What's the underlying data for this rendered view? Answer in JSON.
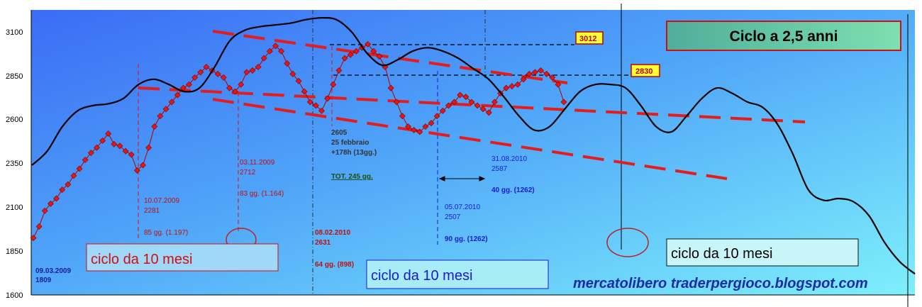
{
  "chart_data": {
    "type": "line",
    "title": "Ciclo a 2,5 anni",
    "yticks": [
      "3100",
      "2850",
      "2600",
      "2350",
      "2100",
      "1850",
      "1600"
    ],
    "ylim": [
      1600,
      3190
    ],
    "grid": false,
    "level_labels": [
      "3012",
      "2830"
    ],
    "cycle_boxes": [
      "ciclo da 10 mesi",
      "ciclo da 10 mesi",
      "ciclo da 10 mesi"
    ],
    "watermark": "mercatolibero traderpergioco.blogspot.com",
    "annotations": [
      {
        "lines": [
          "09.03.2009",
          "1809"
        ]
      },
      {
        "lines": [
          "10.07.2009",
          "2281"
        ]
      },
      {
        "lines": [
          "85 gg. (1.197)"
        ]
      },
      {
        "lines": [
          "03.11.2009",
          "2712"
        ]
      },
      {
        "lines": [
          "83 gg. (1.164)"
        ]
      },
      {
        "lines": [
          "2605",
          "25 febbraio",
          "+178h (13gg.)"
        ]
      },
      {
        "lines": [
          "TOT. 245 gg."
        ]
      },
      {
        "lines": [
          "08.02.2010",
          "2631"
        ]
      },
      {
        "lines": [
          "64 gg. (898)"
        ]
      },
      {
        "lines": [
          "31.08.2010",
          "2587"
        ]
      },
      {
        "lines": [
          "40 gg. (1262)"
        ]
      },
      {
        "lines": [
          "05.07.2010",
          "2507"
        ]
      },
      {
        "lines": [
          "90 gg. (1262)"
        ]
      }
    ],
    "series": [
      {
        "type": "price",
        "values": [
          1925,
          1990,
          2080,
          2120,
          2150,
          2200,
          2230,
          2280,
          2320,
          2370,
          2410,
          2440,
          2480,
          2520,
          2460,
          2450,
          2420,
          2400,
          2310,
          2340,
          2440,
          2560,
          2620,
          2660,
          2700,
          2740,
          2780,
          2800,
          2840,
          2870,
          2900,
          2880,
          2860,
          2840,
          2780,
          2760,
          2800,
          2870,
          2880,
          2900,
          2950,
          2990,
          3020,
          2990,
          2920,
          2860,
          2820,
          2760,
          2700,
          2680,
          2650,
          2720,
          2800,
          2880,
          2950,
          2970,
          2990,
          3010,
          3030,
          2990,
          2960,
          2900,
          2780,
          2700,
          2620,
          2560,
          2540,
          2530,
          2560,
          2580,
          2620,
          2650,
          2680,
          2700,
          2740,
          2730,
          2700,
          2680,
          2660,
          2640,
          2700,
          2750,
          2780,
          2790,
          2800,
          2830,
          2860,
          2870,
          2880,
          2860,
          2840,
          2800,
          2700
        ]
      },
      {
        "type": "cycle",
        "values": [
          2340,
          2420,
          2560,
          2650,
          2680,
          2690,
          2720,
          2800,
          2830,
          2800,
          2760,
          2780,
          2900,
          3050,
          3110,
          3130,
          3140,
          3150,
          3170,
          3180,
          3170,
          3100,
          2980,
          2910,
          2940,
          2990,
          3010,
          2990,
          2950,
          2890,
          2830,
          2730,
          2620,
          2540,
          2560,
          2660,
          2760,
          2800,
          2800,
          2780,
          2680,
          2560,
          2530,
          2620,
          2720,
          2780,
          2750,
          2700,
          2670,
          2570,
          2400,
          2200,
          2140,
          2150,
          2130,
          2050,
          1900,
          1790,
          1720
        ]
      }
    ],
    "channel_upper": [
      [
        2810,
        2820
      ],
      [
        2690,
        2780
      ]
    ],
    "channel_lower": [
      [
        2720,
        2270
      ]
    ]
  }
}
